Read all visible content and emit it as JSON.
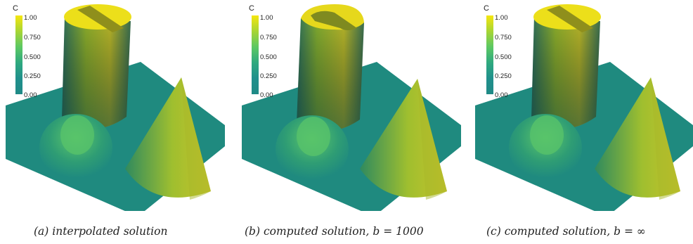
{
  "colorbar": {
    "title": "C",
    "ticks": [
      "1.00",
      "0.750",
      "0.500",
      "0.250",
      "0.00"
    ]
  },
  "panels": [
    {
      "caption": "(a) interpolated solution"
    },
    {
      "caption": "(b) computed solution, b = 1000"
    },
    {
      "caption": "(c) computed solution, b = ∞"
    }
  ],
  "colors": {
    "plane": "#1f8a7f",
    "cylinder_top": "#eadf1c",
    "cylinder_dark": "#2a6a5a",
    "cone_light": "#cfd23a",
    "hump": "#45b86a"
  }
}
